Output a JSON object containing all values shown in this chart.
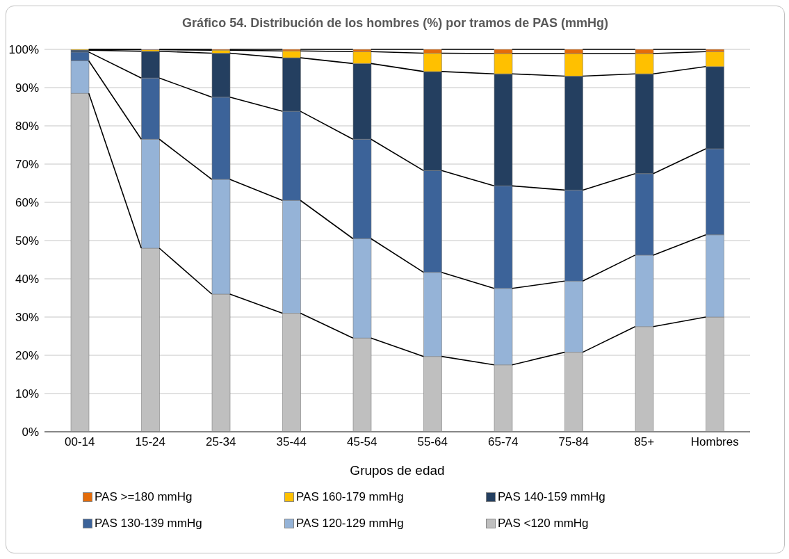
{
  "chart_data": {
    "type": "bar",
    "stacked": true,
    "title": "Gráfico 54. Distribución de los hombres (%) por tramos de PAS (mmHg)",
    "xlabel": "Grupos de edad",
    "categories": [
      "00-14",
      "15-24",
      "25-34",
      "35-44",
      "45-54",
      "55-64",
      "65-74",
      "75-84",
      "85+",
      "Hombres"
    ],
    "series": [
      {
        "name": "PAS <120 mmHg",
        "color": "#bfbfbf",
        "values": [
          88.5,
          48,
          36,
          31,
          24.5,
          19.7,
          17.5,
          20.8,
          27.5,
          30
        ]
      },
      {
        "name": "PAS 120-129 mmHg",
        "color": "#95b3d7",
        "values": [
          8.5,
          28.5,
          30,
          29.5,
          26,
          22,
          20,
          18.6,
          18.7,
          21.5
        ]
      },
      {
        "name": "PAS 130-139 mmHg",
        "color": "#3c6399",
        "values": [
          2.3,
          16,
          21.5,
          23.3,
          26,
          26.6,
          26.8,
          23.8,
          21.3,
          22.5
        ]
      },
      {
        "name": "PAS 140-159 mmHg",
        "color": "#243f60",
        "values": [
          0.5,
          7,
          11.5,
          14,
          19.8,
          25.9,
          29.3,
          29.8,
          26.1,
          21.5
        ]
      },
      {
        "name": "PAS 160-179 mmHg",
        "color": "#ffc000",
        "values": [
          0.2,
          0.4,
          0.8,
          1.8,
          3.1,
          4.8,
          5.3,
          5.9,
          5.3,
          3.9
        ]
      },
      {
        "name": "PAS >=180 mmHg",
        "color": "#e46c0a",
        "values": [
          0,
          0.1,
          0.2,
          0.4,
          0.6,
          1,
          1.1,
          1.1,
          1.1,
          0.6
        ]
      }
    ],
    "ylim": [
      0,
      100
    ],
    "yticks": [
      {
        "value": 0,
        "label": "0%"
      },
      {
        "value": 10,
        "label": "10%"
      },
      {
        "value": 20,
        "label": "20%"
      },
      {
        "value": 30,
        "label": "30%"
      },
      {
        "value": 40,
        "label": "40%"
      },
      {
        "value": 50,
        "label": "50%"
      },
      {
        "value": 60,
        "label": "60%"
      },
      {
        "value": 70,
        "label": "70%"
      },
      {
        "value": 80,
        "label": "80%"
      },
      {
        "value": 90,
        "label": "90%"
      },
      {
        "value": 100,
        "label": "100%"
      }
    ],
    "grid": "y",
    "legend": "bottom"
  }
}
